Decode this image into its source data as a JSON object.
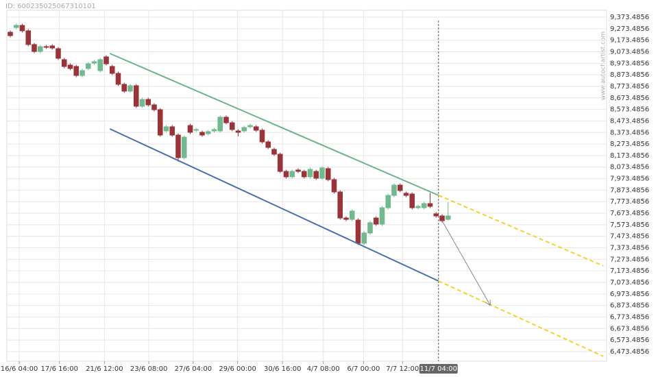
{
  "page_id": "ID: 600235025067310101",
  "watermark": "www.autochartist.com",
  "chart_data": {
    "type": "candlestick",
    "up_color": "#6fba8e",
    "down_color": "#9b3339",
    "x": [
      0,
      1,
      2,
      3,
      4,
      5,
      6,
      7,
      8,
      9,
      10,
      11,
      12,
      13,
      14,
      15,
      16,
      17,
      18,
      19,
      20,
      21,
      22,
      23,
      24,
      25,
      26,
      27,
      28,
      29,
      30,
      31,
      32,
      33,
      34,
      35,
      36,
      37,
      38,
      39,
      40,
      41,
      42,
      43,
      44,
      45,
      46,
      47,
      48,
      49,
      50,
      51,
      52,
      53,
      54,
      55,
      56,
      57,
      58,
      59,
      60,
      61,
      62,
      63,
      64,
      65,
      66,
      67,
      68,
      69,
      70,
      71,
      72,
      73
    ],
    "open": [
      9243,
      9284,
      9302,
      9255,
      9136,
      9076,
      9118,
      9124,
      9100,
      9005,
      8958,
      8946,
      8868,
      8928,
      8975,
      8910,
      9029,
      8946,
      8886,
      8791,
      8732,
      8779,
      8601,
      8660,
      8613,
      8571,
      8387,
      8423,
      8351,
      8155,
      8434,
      8393,
      8375,
      8363,
      8387,
      8387,
      8506,
      8458,
      8387,
      8387,
      8423,
      8423,
      8393,
      8292,
      8227,
      8185,
      8036,
      7989,
      8048,
      8036,
      7989,
      8036,
      7977,
      8060,
      7965,
      7858,
      7632,
      7620,
      7614,
      7413,
      7502,
      7632,
      7579,
      7721,
      7828,
      7917,
      7846,
      7840,
      7721,
      7721,
      7757,
      7668,
      7650,
      7620
    ],
    "high": [
      9258,
      9317,
      9317,
      9270,
      9151,
      9133,
      9133,
      9139,
      9115,
      9020,
      8973,
      8961,
      8925,
      8984,
      9002,
      9020,
      9044,
      8961,
      8901,
      8806,
      8794,
      8794,
      8675,
      8675,
      8628,
      8586,
      8438,
      8438,
      8366,
      8348,
      8449,
      8414,
      8390,
      8396,
      8414,
      8521,
      8521,
      8473,
      8402,
      8432,
      8449,
      8438,
      8408,
      8307,
      8242,
      8200,
      8051,
      8051,
      8063,
      8051,
      8069,
      8051,
      8081,
      8075,
      7980,
      7873,
      7647,
      7707,
      7629,
      7517,
      7606,
      7647,
      7736,
      7843,
      7932,
      7932,
      7861,
      7855,
      7748,
      7772,
      7850,
      7683,
      7665,
      7770
    ],
    "low": [
      9198,
      9269,
      9240,
      9121,
      9061,
      9061,
      9097,
      9091,
      9002,
      8931,
      8913,
      8853,
      8853,
      8913,
      8960,
      8895,
      8954,
      8871,
      8776,
      8717,
      8717,
      8586,
      8586,
      8598,
      8556,
      8336,
      8372,
      8336,
      8120,
      8140,
      8360,
      8378,
      8336,
      8348,
      8372,
      8372,
      8443,
      8384,
      8340,
      8372,
      8408,
      8378,
      8277,
      8229,
      8170,
      8021,
      7974,
      7974,
      8021,
      7974,
      7974,
      7962,
      7962,
      7950,
      7843,
      7617,
      7605,
      7605,
      7398,
      7398,
      7487,
      7564,
      7564,
      7706,
      7813,
      7855,
      7813,
      7706,
      7706,
      7706,
      7718,
      7635,
      7593,
      7610
    ],
    "close": [
      9213,
      9302,
      9255,
      9136,
      9076,
      9118,
      9112,
      9106,
      9017,
      8946,
      8928,
      8868,
      8910,
      8969,
      8987,
      9005,
      8969,
      8886,
      8791,
      8732,
      8779,
      8601,
      8660,
      8613,
      8571,
      8351,
      8423,
      8351,
      8155,
      8333,
      8375,
      8399,
      8351,
      8381,
      8399,
      8506,
      8458,
      8399,
      8375,
      8417,
      8434,
      8393,
      8292,
      8244,
      8185,
      8036,
      7989,
      8036,
      8036,
      7989,
      8054,
      7977,
      8066,
      7965,
      7858,
      7632,
      7620,
      7692,
      7413,
      7502,
      7591,
      7579,
      7721,
      7828,
      7917,
      7870,
      7828,
      7721,
      7733,
      7757,
      7733,
      7650,
      7608,
      7650
    ],
    "xlim": [
      -0.57,
      99.43
    ],
    "xticks": [
      {
        "value": 1.5,
        "label": "16/6 04:00"
      },
      {
        "value": 8.2,
        "label": "17/6 16:00"
      },
      {
        "value": 15.7,
        "label": "21/6 12:00"
      },
      {
        "value": 23.1,
        "label": "23/6 08:00"
      },
      {
        "value": 30.5,
        "label": "27/6 04:00"
      },
      {
        "value": 37.9,
        "label": "29/6 00:00"
      },
      {
        "value": 45.4,
        "label": "30/6 16:00"
      },
      {
        "value": 52.2,
        "label": "4/7 08:00"
      },
      {
        "value": 58.9,
        "label": "6/7 00:00"
      },
      {
        "value": 65.4,
        "label": "7/7 12:00"
      }
    ],
    "current_time": {
      "value": 71.4,
      "label": "11/7 04:00"
    },
    "ylim": [
      6390,
      9433
    ],
    "yticks": [
      {
        "value": 9373.4856,
        "label": "9,373.4856"
      },
      {
        "value": 9273.4856,
        "label": "9,273.4856"
      },
      {
        "value": 9173.4856,
        "label": "9,173.4856"
      },
      {
        "value": 9073.4856,
        "label": "9,073.4856"
      },
      {
        "value": 8973.4856,
        "label": "8,973.4856"
      },
      {
        "value": 8873.4856,
        "label": "8,873.4856"
      },
      {
        "value": 8773.4856,
        "label": "8,773.4856"
      },
      {
        "value": 8673.4856,
        "label": "8,673.4856"
      },
      {
        "value": 8573.4856,
        "label": "8,573.4856"
      },
      {
        "value": 8473.4856,
        "label": "8,473.4856"
      },
      {
        "value": 8373.4856,
        "label": "8,373.4856"
      },
      {
        "value": 8273.4856,
        "label": "8,273.4856"
      },
      {
        "value": 8173.4856,
        "label": "8,173.4856"
      },
      {
        "value": 8073.4856,
        "label": "8,073.4856"
      },
      {
        "value": 7973.4856,
        "label": "7,973.4856"
      },
      {
        "value": 7873.4856,
        "label": "7,873.4856"
      },
      {
        "value": 7773.4856,
        "label": "7,773.4856"
      },
      {
        "value": 7673.4856,
        "label": "7,673.4856"
      },
      {
        "value": 7573.4856,
        "label": "7,573.4856"
      },
      {
        "value": 7473.4856,
        "label": "7,473.4856"
      },
      {
        "value": 7373.4856,
        "label": "7,373.4856"
      },
      {
        "value": 7273.4856,
        "label": "7,273.4856"
      },
      {
        "value": 7173.4856,
        "label": "7,173.4856"
      },
      {
        "value": 7073.4856,
        "label": "7,073.4856"
      },
      {
        "value": 6973.4856,
        "label": "6,973.4856"
      },
      {
        "value": 6873.4856,
        "label": "6,873.4856"
      },
      {
        "value": 6773.4856,
        "label": "6,773.4856"
      },
      {
        "value": 6673.4856,
        "label": "6,673.4856"
      },
      {
        "value": 6573.4856,
        "label": "6,573.4856"
      },
      {
        "value": 6473.4856,
        "label": "6,473.4856"
      }
    ],
    "grid": true,
    "lines": [
      {
        "color": "#6db38e",
        "dashed": false,
        "x": [
          16.6,
          71.4
        ],
        "y": [
          9058.6,
          7828.6
        ]
      },
      {
        "color": "#f5d327",
        "dashed": true,
        "x": [
          71.4,
          98.9
        ],
        "y": [
          7828.6,
          7216.5
        ]
      },
      {
        "color": "#4a6fab",
        "dashed": false,
        "x": [
          16.6,
          71.4
        ],
        "y": [
          8404.9,
          7085.8
        ]
      },
      {
        "color": "#f5d327",
        "dashed": true,
        "x": [
          71.4,
          98.9
        ],
        "y": [
          7085.8,
          6432.2
        ]
      },
      {
        "color": "#888888",
        "dashed": false,
        "arrow": true,
        "x": [
          72,
          80
        ],
        "y": [
          7608.7,
          6877.8
        ]
      }
    ]
  }
}
